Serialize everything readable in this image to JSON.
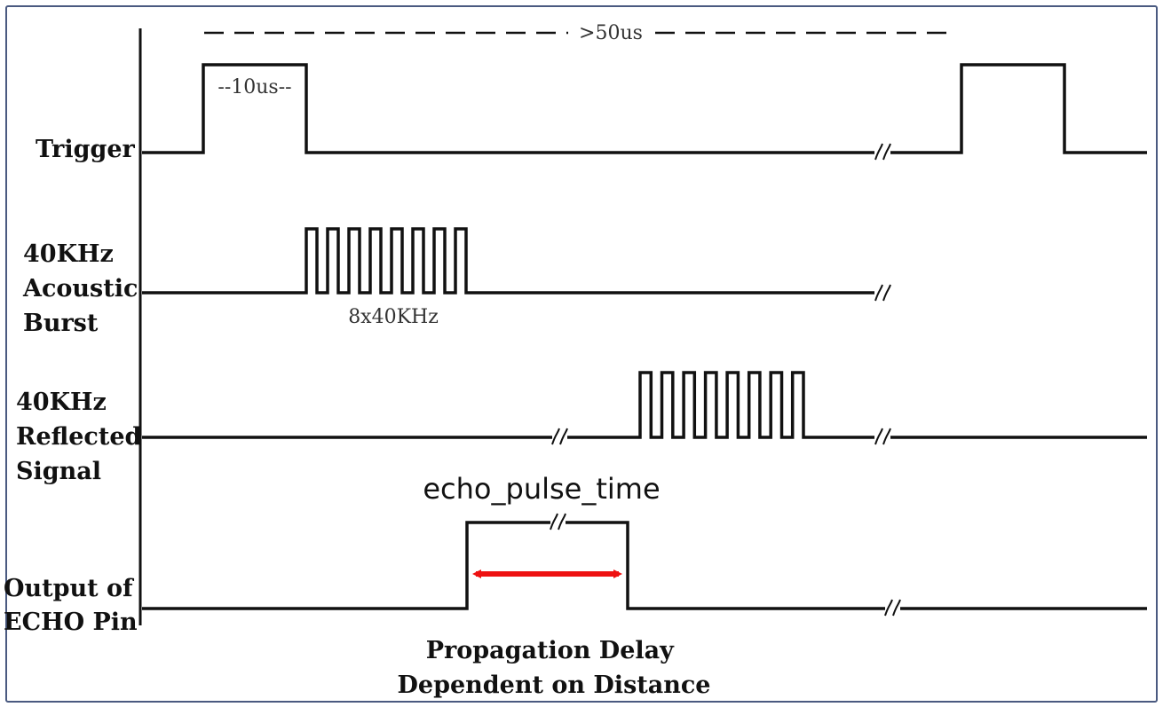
{
  "signals": [
    {
      "id": "trigger",
      "lines": [
        "Trigger"
      ]
    },
    {
      "id": "burst",
      "lines": [
        "40KHz",
        "Acoustic",
        "Burst"
      ]
    },
    {
      "id": "reflected",
      "lines": [
        "40KHz",
        "Reflected",
        "Signal"
      ]
    },
    {
      "id": "echo",
      "lines": [
        "Output of",
        "ECHO Pin"
      ]
    }
  ],
  "annotations": {
    "period": ">50us",
    "trigger_width": "--10us--",
    "burst_count": "8x40KHz",
    "echo_time": "echo_pulse_time",
    "caption_line1": "Propagation Delay",
    "caption_line2": "Dependent on Distance"
  },
  "colors": {
    "arrow": "#ee1111",
    "frame": "#4a5a80",
    "line": "#111111"
  }
}
